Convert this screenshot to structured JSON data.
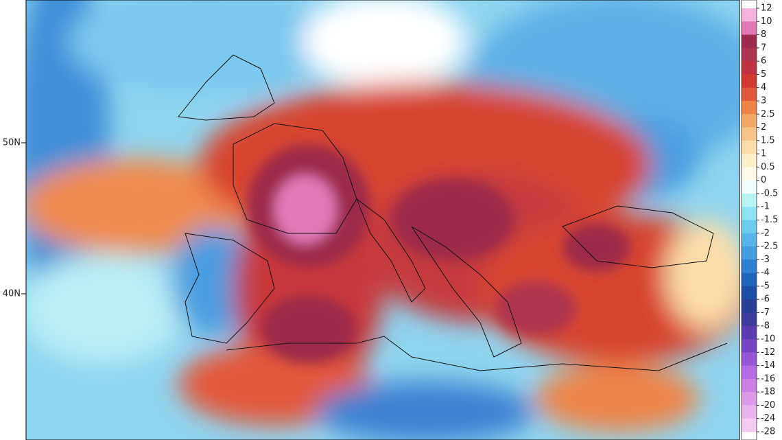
{
  "map": {
    "lat_labels": [
      "50N",
      "40N"
    ],
    "colorbar": {
      "labels": [
        "12",
        "10",
        "8",
        "7",
        "6",
        "5",
        "4",
        "3",
        "2.5",
        "2",
        "1.5",
        "1",
        "0.5",
        "0",
        "-0.5",
        "-1",
        "-1.5",
        "-2",
        "-2.5",
        "-3",
        "-4",
        "-5",
        "-6",
        "-7",
        "-8",
        "-10",
        "-12",
        "-14",
        "-16",
        "-18",
        "-20",
        "-24",
        "-28"
      ],
      "colors": [
        "#f6b4dc",
        "#e37ab8",
        "#9c2a4c",
        "#ad3450",
        "#bf3040",
        "#d23a30",
        "#e2583a",
        "#ee8548",
        "#f4a868",
        "#f8c488",
        "#fbdda8",
        "#fdefc8",
        "#fffae8",
        "#f2fdfd",
        "#b8f4f4",
        "#8ee4f2",
        "#6ccbee",
        "#58b4ea",
        "#449ce0",
        "#2f80d0",
        "#1f64bb",
        "#1a4ea4",
        "#2a3e98",
        "#3e3a9c",
        "#5a3cb0",
        "#7444c4",
        "#9656d6",
        "#b66ae2",
        "#cc80e6",
        "#de9ae8",
        "#eab4ec",
        "#f4ccf2"
      ]
    }
  }
}
